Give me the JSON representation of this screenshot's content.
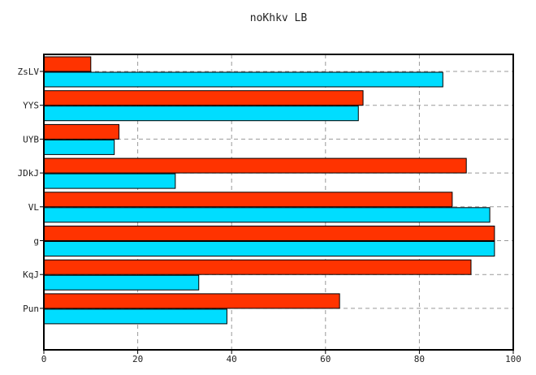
{
  "chart_data": {
    "type": "bar",
    "orientation": "horizontal",
    "title": "noKhkv LB",
    "xlabel": "",
    "ylabel": "",
    "categories": [
      "ZsLV",
      "YYS",
      "UYB",
      "JDkJ",
      "VL",
      "g",
      "KqJ",
      "Pun"
    ],
    "series": [
      {
        "color": "#ff3300",
        "values": [
          10,
          68,
          16,
          90,
          87,
          96,
          91,
          63
        ]
      },
      {
        "color": "#00ddff",
        "values": [
          85,
          67,
          15,
          28,
          95,
          96,
          33,
          39
        ]
      }
    ],
    "xlim": [
      0,
      100
    ],
    "xticks": [
      "0",
      "20",
      "40",
      "60",
      "80",
      "100"
    ],
    "grid": true,
    "grid_style": "dashed"
  }
}
